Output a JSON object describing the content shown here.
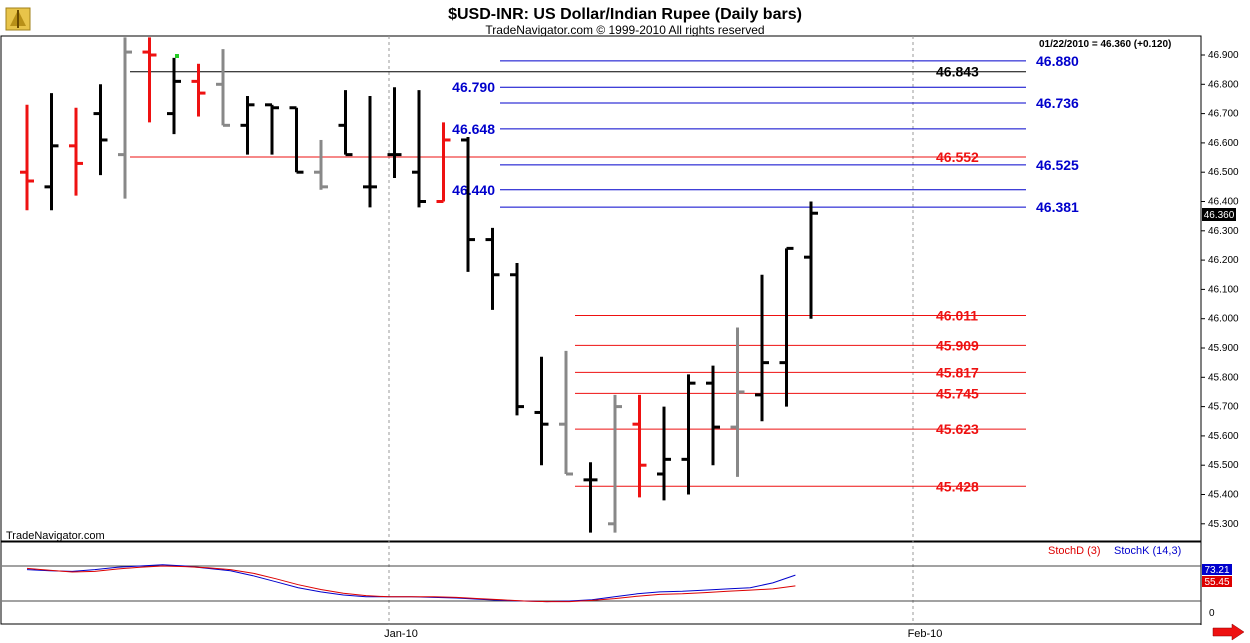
{
  "header": {
    "title": "$USD-INR:  US Dollar/Indian Rupee  (Daily bars)",
    "subtitle": "TradeNavigator.com © 1999-2010 All rights reserved",
    "quote": "01/22/2010 = 46.360 (+0.120)"
  },
  "watermark": "TradeNavigator.com",
  "indicator": {
    "stochd_label": "StochD (3)",
    "stochk_label": "StochK (14,3)",
    "stochk_value": "73.21",
    "stochd_value": "55.45",
    "zero_label": "0",
    "stochk_color": "#0000cc",
    "stochd_color": "#dd0000",
    "stochk": [
      82,
      80,
      79,
      82,
      86,
      88,
      90,
      88,
      84,
      80,
      72,
      62,
      52,
      45,
      40,
      37,
      37,
      37,
      36,
      35,
      33,
      31,
      30,
      29,
      30,
      32,
      37,
      42,
      45,
      46,
      48,
      50,
      52,
      60,
      73
    ],
    "stochd": [
      84,
      81,
      78,
      79,
      83,
      86,
      88,
      87,
      85,
      82,
      76,
      67,
      57,
      49,
      43,
      39,
      37,
      37,
      37,
      36,
      34,
      32,
      30,
      29,
      29,
      31,
      34,
      38,
      41,
      42,
      44,
      46,
      48,
      50,
      55
    ]
  },
  "current_price_label": "46.360",
  "nav_arrow_icon": "right-arrow-icon",
  "colors": {
    "red": "#ee1111",
    "blue": "#0000cc",
    "black": "#000000",
    "grey": "#888888",
    "green": "#22cc22"
  },
  "chart_data": {
    "type": "ohlc",
    "title": "$USD-INR:  US Dollar/Indian Rupee  (Daily bars)",
    "ylim": [
      45.25,
      46.96
    ],
    "y_ticks": [
      "46.900",
      "46.800",
      "46.700",
      "46.600",
      "46.500",
      "46.400",
      "46.300",
      "46.200",
      "46.100",
      "46.000",
      "45.900",
      "45.800",
      "45.700",
      "45.600",
      "45.500",
      "45.400",
      "45.300"
    ],
    "x_labels": [
      "Jan-10",
      "Feb-10"
    ],
    "bars": [
      {
        "o": 46.5,
        "h": 46.73,
        "l": 46.37,
        "c": 46.47,
        "col": "red"
      },
      {
        "o": 46.45,
        "h": 46.77,
        "l": 46.37,
        "c": 46.59,
        "col": "black"
      },
      {
        "o": 46.59,
        "h": 46.72,
        "l": 46.42,
        "c": 46.53,
        "col": "red"
      },
      {
        "o": 46.7,
        "h": 46.8,
        "l": 46.49,
        "c": 46.61,
        "col": "black"
      },
      {
        "o": 46.56,
        "h": 46.96,
        "l": 46.41,
        "c": 46.91,
        "col": "grey"
      },
      {
        "o": 46.91,
        "h": 46.96,
        "l": 46.67,
        "c": 46.9,
        "col": "red"
      },
      {
        "o": 46.7,
        "h": 46.89,
        "l": 46.63,
        "c": 46.81,
        "col": "black"
      },
      {
        "o": 46.81,
        "h": 46.87,
        "l": 46.69,
        "c": 46.77,
        "col": "red"
      },
      {
        "o": 46.8,
        "h": 46.92,
        "l": 46.66,
        "c": 46.66,
        "col": "grey"
      },
      {
        "o": 46.66,
        "h": 46.76,
        "l": 46.56,
        "c": 46.73,
        "col": "black"
      },
      {
        "o": 46.73,
        "h": 46.73,
        "l": 46.56,
        "c": 46.72,
        "col": "black"
      },
      {
        "o": 46.72,
        "h": 46.72,
        "l": 46.5,
        "c": 46.5,
        "col": "black"
      },
      {
        "o": 46.5,
        "h": 46.61,
        "l": 46.44,
        "c": 46.45,
        "col": "grey"
      },
      {
        "o": 46.66,
        "h": 46.78,
        "l": 46.56,
        "c": 46.56,
        "col": "black"
      },
      {
        "o": 46.45,
        "h": 46.76,
        "l": 46.38,
        "c": 46.45,
        "col": "black"
      },
      {
        "o": 46.56,
        "h": 46.79,
        "l": 46.48,
        "c": 46.56,
        "col": "black"
      },
      {
        "o": 46.5,
        "h": 46.78,
        "l": 46.38,
        "c": 46.4,
        "col": "black"
      },
      {
        "o": 46.4,
        "h": 46.67,
        "l": 46.4,
        "c": 46.61,
        "col": "red"
      },
      {
        "o": 46.61,
        "h": 46.62,
        "l": 46.16,
        "c": 46.27,
        "col": "black"
      },
      {
        "o": 46.27,
        "h": 46.31,
        "l": 46.03,
        "c": 46.15,
        "col": "black"
      },
      {
        "o": 46.15,
        "h": 46.19,
        "l": 45.67,
        "c": 45.7,
        "col": "black"
      },
      {
        "o": 45.68,
        "h": 45.87,
        "l": 45.5,
        "c": 45.64,
        "col": "black"
      },
      {
        "o": 45.64,
        "h": 45.89,
        "l": 45.47,
        "c": 45.47,
        "col": "grey"
      },
      {
        "o": 45.45,
        "h": 45.51,
        "l": 45.27,
        "c": 45.45,
        "col": "black"
      },
      {
        "o": 45.3,
        "h": 45.74,
        "l": 45.27,
        "c": 45.7,
        "col": "grey"
      },
      {
        "o": 45.64,
        "h": 45.74,
        "l": 45.39,
        "c": 45.5,
        "col": "red"
      },
      {
        "o": 45.47,
        "h": 45.7,
        "l": 45.38,
        "c": 45.52,
        "col": "black"
      },
      {
        "o": 45.52,
        "h": 45.81,
        "l": 45.4,
        "c": 45.78,
        "col": "black"
      },
      {
        "o": 45.78,
        "h": 45.84,
        "l": 45.5,
        "c": 45.63,
        "col": "black"
      },
      {
        "o": 45.63,
        "h": 45.97,
        "l": 45.46,
        "c": 45.75,
        "col": "grey"
      },
      {
        "o": 45.74,
        "h": 46.15,
        "l": 45.65,
        "c": 45.85,
        "col": "black"
      },
      {
        "o": 45.85,
        "h": 46.24,
        "l": 45.7,
        "c": 46.24,
        "col": "black"
      },
      {
        "o": 46.21,
        "h": 46.4,
        "l": 46.0,
        "c": 46.36,
        "col": "black"
      }
    ],
    "levels": [
      {
        "value": 46.843,
        "label": "46.843",
        "color": "black",
        "side": "right",
        "x_from": 130
      },
      {
        "value": 46.552,
        "label": "46.552",
        "color": "red",
        "side": "right",
        "x_from": 130
      },
      {
        "value": 46.88,
        "label": "46.880",
        "color": "blue",
        "side": "far",
        "x_from": 500
      },
      {
        "value": 46.79,
        "label": "46.790",
        "color": "blue",
        "side": "left",
        "x_from": 500
      },
      {
        "value": 46.736,
        "label": "46.736",
        "color": "blue",
        "side": "far",
        "x_from": 500
      },
      {
        "value": 46.648,
        "label": "46.648",
        "color": "blue",
        "side": "left",
        "x_from": 500
      },
      {
        "value": 46.525,
        "label": "46.525",
        "color": "blue",
        "side": "far",
        "x_from": 500
      },
      {
        "value": 46.44,
        "label": "46.440",
        "color": "blue",
        "side": "left",
        "x_from": 500
      },
      {
        "value": 46.381,
        "label": "46.381",
        "color": "blue",
        "side": "far",
        "x_from": 500
      },
      {
        "value": 46.011,
        "label": "46.011",
        "color": "red",
        "side": "right",
        "x_from": 575
      },
      {
        "value": 45.909,
        "label": "45.909",
        "color": "red",
        "side": "right",
        "x_from": 575
      },
      {
        "value": 45.817,
        "label": "45.817",
        "color": "red",
        "side": "right",
        "x_from": 575
      },
      {
        "value": 45.745,
        "label": "45.745",
        "color": "red",
        "side": "right",
        "x_from": 575
      },
      {
        "value": 45.623,
        "label": "45.623",
        "color": "red",
        "side": "right",
        "x_from": 575
      },
      {
        "value": 45.428,
        "label": "45.428",
        "color": "red",
        "side": "right",
        "x_from": 575
      }
    ]
  }
}
